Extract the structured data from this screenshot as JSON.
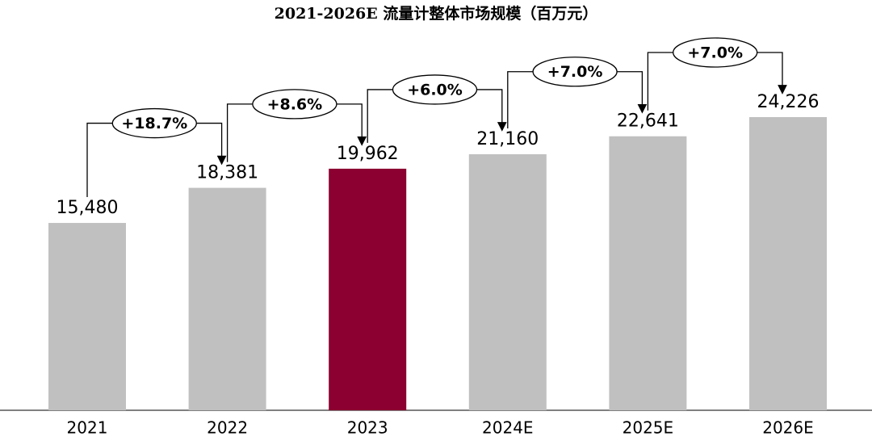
{
  "chart_data": {
    "type": "bar",
    "title": "2021-2026E 流量计整体市场规模（百万元）",
    "categories": [
      "2021",
      "2022",
      "2023",
      "2024E",
      "2025E",
      "2026E"
    ],
    "values": [
      15480,
      18381,
      19962,
      21160,
      22641,
      24226
    ],
    "value_labels": [
      "15,480",
      "18,381",
      "19,962",
      "21,160",
      "22,641",
      "24,226"
    ],
    "colors": [
      "#c0c0c0",
      "#c0c0c0",
      "#8b0030",
      "#c0c0c0",
      "#c0c0c0",
      "#c0c0c0"
    ],
    "growth_labels": [
      "+18.7%",
      "+8.6%",
      "+6.0%",
      "+7.0%",
      "+7.0%"
    ]
  }
}
